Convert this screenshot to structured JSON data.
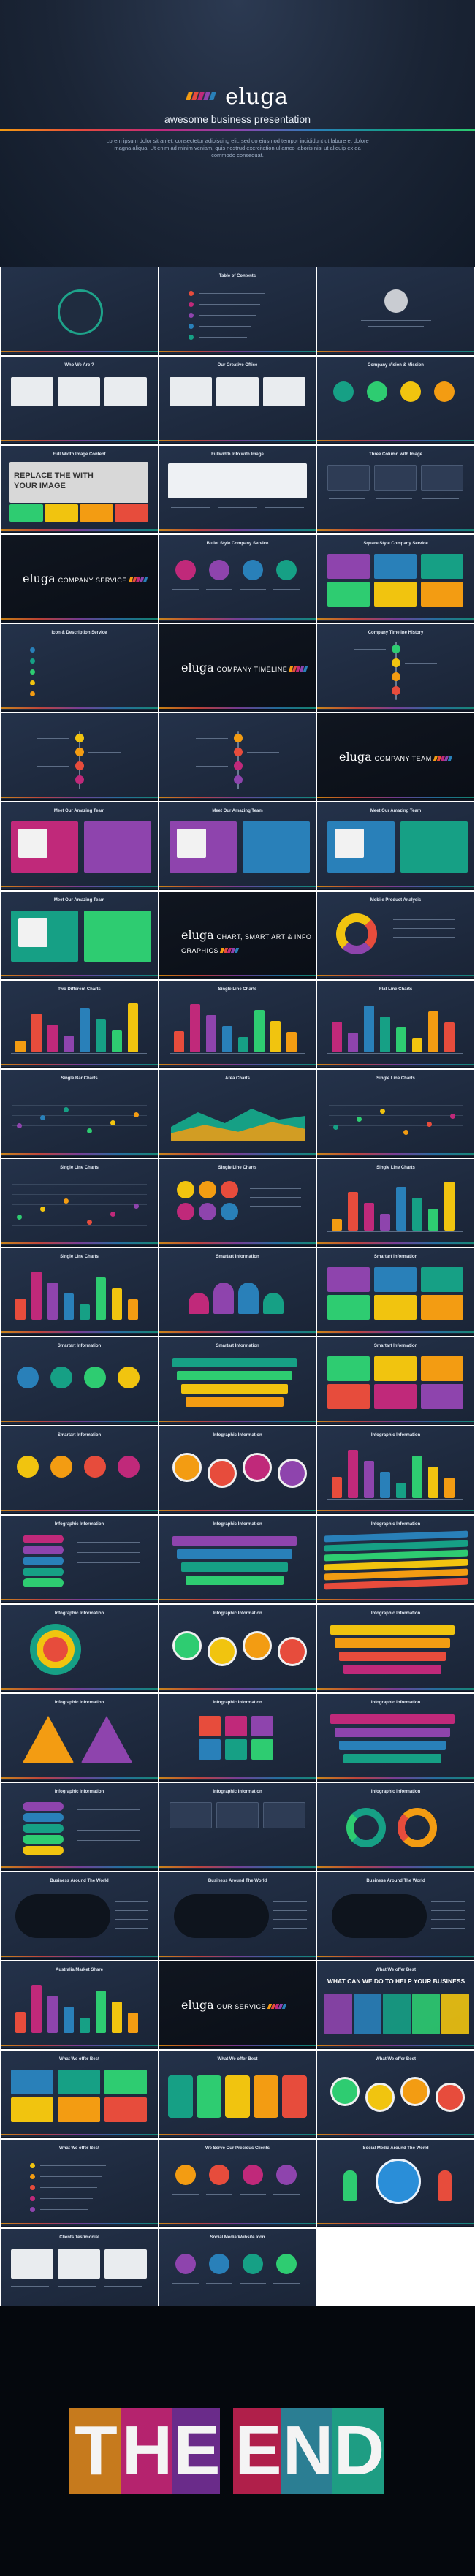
{
  "hero": {
    "brand": "eluga",
    "subtitle": "awesome business presentation",
    "description": "Lorem ipsum dolor sit amet, consectetur adipiscing elit, sed do eiusmod tempor incididunt ut labore et dolore magna aliqua. Ut enim ad minim veniam, quis nostrud exercitation ullamco laboris nisi ut aliquip ex ea commodo consequat.",
    "bar_colors": [
      "#f39c12",
      "#e74c3c",
      "#c0297a",
      "#8e44ad",
      "#2980b9"
    ]
  },
  "slides": [
    {
      "title": "",
      "kind": "brand-circle"
    },
    {
      "title": "Table of Contents",
      "kind": "list"
    },
    {
      "title": "",
      "kind": "profile"
    },
    {
      "title": "Who We Are ?",
      "kind": "photos"
    },
    {
      "title": "Our Creative Office",
      "kind": "photos"
    },
    {
      "title": "Company Vision & Mission",
      "kind": "icons"
    },
    {
      "title": "Full Width Image Content",
      "kind": "banner",
      "banner_text": "REPLACE THE WITH YOUR IMAGE"
    },
    {
      "title": "Fullwidth Info with Image",
      "kind": "photo-wide"
    },
    {
      "title": "Three Column with Image",
      "kind": "columns"
    },
    {
      "title": "",
      "kind": "section",
      "section": "COMPANY SERVICE"
    },
    {
      "title": "Bullet Style Company Service",
      "kind": "icons"
    },
    {
      "title": "Square Style Company Service",
      "kind": "tiles"
    },
    {
      "title": "Icon & Description Service",
      "kind": "list"
    },
    {
      "title": "",
      "kind": "section",
      "section": "COMPANY TIMELINE"
    },
    {
      "title": "Company Timeline History",
      "kind": "timeline"
    },
    {
      "title": "",
      "kind": "timeline"
    },
    {
      "title": "",
      "kind": "timeline"
    },
    {
      "title": "",
      "kind": "section",
      "section": "COMPANY TEAM"
    },
    {
      "title": "Meet Our Amazing Team",
      "kind": "team"
    },
    {
      "title": "Meet Our Amazing Team",
      "kind": "team"
    },
    {
      "title": "Meet Our Amazing Team",
      "kind": "team"
    },
    {
      "title": "Meet Our Amazing Team",
      "kind": "team"
    },
    {
      "title": "",
      "kind": "section",
      "section": "CHART, SMART ART & INFO GRAPHICS"
    },
    {
      "title": "Mobile Product Analysis",
      "kind": "donut"
    },
    {
      "title": "Two Different Charts",
      "kind": "bars"
    },
    {
      "title": "Single Line Charts",
      "kind": "bars"
    },
    {
      "title": "Flat Line Charts",
      "kind": "bars"
    },
    {
      "title": "Single Bar Charts",
      "kind": "lines"
    },
    {
      "title": "Area Charts",
      "kind": "area"
    },
    {
      "title": "Single Line Charts",
      "kind": "lines"
    },
    {
      "title": "Single Line Charts",
      "kind": "lines"
    },
    {
      "title": "Single Line Charts",
      "kind": "dots"
    },
    {
      "title": "Single Line Charts",
      "kind": "bars"
    },
    {
      "title": "Single Line Charts",
      "kind": "bars"
    },
    {
      "title": "Smartart Information",
      "kind": "arch"
    },
    {
      "title": "Smartart Information",
      "kind": "tiles"
    },
    {
      "title": "Smartart Information",
      "kind": "flow"
    },
    {
      "title": "Smartart Information",
      "kind": "ribbons"
    },
    {
      "title": "Smartart Information",
      "kind": "tiles"
    },
    {
      "title": "Smartart Information",
      "kind": "flow"
    },
    {
      "title": "Infographic Information",
      "kind": "circles"
    },
    {
      "title": "Infographic Information",
      "kind": "bars"
    },
    {
      "title": "Infographic Information",
      "kind": "stack"
    },
    {
      "title": "Infographic Information",
      "kind": "ribbons"
    },
    {
      "title": "Infographic Information",
      "kind": "stripes"
    },
    {
      "title": "Infographic Information",
      "kind": "target"
    },
    {
      "title": "Infographic Information",
      "kind": "circles"
    },
    {
      "title": "Infographic Information",
      "kind": "ribbons"
    },
    {
      "title": "Infographic Information",
      "kind": "pyramid"
    },
    {
      "title": "Infographic Information",
      "kind": "cubes"
    },
    {
      "title": "Infographic Information",
      "kind": "ribbons"
    },
    {
      "title": "Infographic Information",
      "kind": "stack"
    },
    {
      "title": "Infographic Information",
      "kind": "columns"
    },
    {
      "title": "Infographic Information",
      "kind": "rings"
    },
    {
      "title": "Business Around The World",
      "kind": "map"
    },
    {
      "title": "Business Around The World",
      "kind": "map"
    },
    {
      "title": "Business Around The World",
      "kind": "map"
    },
    {
      "title": "Australia Market Share",
      "kind": "bars"
    },
    {
      "title": "",
      "kind": "section",
      "section": "OUR SERVICE"
    },
    {
      "title": "What We offer Best",
      "kind": "table",
      "banner_text": "WHAT CAN WE DO TO HELP YOUR BUSINESS"
    },
    {
      "title": "What We offer Best",
      "kind": "tiles"
    },
    {
      "title": "What We offer Best",
      "kind": "cards"
    },
    {
      "title": "What We offer Best",
      "kind": "circles"
    },
    {
      "title": "What We offer Best",
      "kind": "list"
    },
    {
      "title": "We Serve Our Precious Clients",
      "kind": "icons"
    },
    {
      "title": "Social Media Around The World",
      "kind": "globe"
    },
    {
      "title": "Clients Testimonial",
      "kind": "photos"
    },
    {
      "title": "Social Media Website Icon",
      "kind": "icons"
    },
    {
      "title": "",
      "kind": "blank"
    }
  ],
  "end": {
    "letters": [
      "T",
      "H",
      "E",
      " ",
      "E",
      "N",
      "D"
    ],
    "colors": [
      "#c67a1d",
      "#b5236e",
      "#6a2b8a",
      "",
      "#b01f4a",
      "#2b7e93",
      "#1e9d83"
    ]
  }
}
